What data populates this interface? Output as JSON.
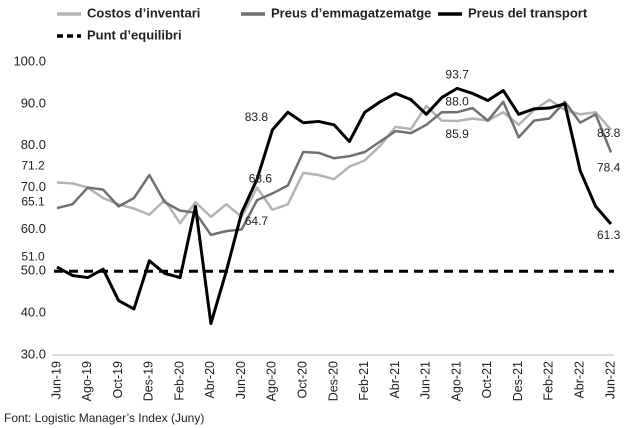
{
  "chart_data": {
    "type": "line",
    "categories": [
      "Jun-19",
      null,
      "Ago-19",
      null,
      "Oct-19",
      null,
      "Des-19",
      null,
      "Feb-20",
      null,
      "Abr-20",
      null,
      "Jun-20",
      null,
      "Ago-20",
      null,
      "Oct-20",
      null,
      "Des-20",
      null,
      "Feb-21",
      null,
      "Abr-21",
      null,
      "Jun-21",
      null,
      "Ago-21",
      null,
      "Oct-21",
      null,
      "Des-21",
      null,
      "Feb-22",
      null,
      "Abr-22",
      null,
      "Jun-22"
    ],
    "series": [
      {
        "name": "Costos d’inventari",
        "color": "#b3b3b3",
        "values": [
          71.2,
          71,
          70,
          67.5,
          66,
          65,
          63.5,
          67,
          61.5,
          66.5,
          63,
          66,
          63,
          70,
          64.7,
          66,
          73.5,
          73,
          72,
          75,
          76.5,
          80,
          84.5,
          84,
          89.5,
          86,
          85.9,
          86.5,
          86,
          88,
          85,
          88.5,
          91,
          88.5,
          87.5,
          88,
          83.8
        ],
        "value_labels": [
          "71.2",
          null,
          null,
          null,
          null,
          null,
          null,
          null,
          null,
          null,
          null,
          null,
          null,
          null,
          "64.7",
          null,
          null,
          null,
          null,
          null,
          null,
          null,
          null,
          null,
          null,
          null,
          "85.9",
          null,
          null,
          null,
          null,
          null,
          null,
          null,
          null,
          null,
          "83.8"
        ]
      },
      {
        "name": "Preus d’emmagatzematge",
        "color": "#707070",
        "values": [
          65.1,
          66,
          70,
          69.5,
          65.5,
          67.5,
          73,
          66.5,
          64.5,
          64,
          58.7,
          59.6,
          60,
          67,
          68.6,
          70.5,
          78.5,
          78.3,
          77,
          77.5,
          78.5,
          81,
          83.5,
          83,
          85,
          88,
          88.0,
          89,
          86,
          90.5,
          82,
          86,
          86.5,
          90.5,
          85.5,
          87.5,
          78.4
        ],
        "value_labels": [
          "65.1",
          null,
          null,
          null,
          null,
          null,
          null,
          null,
          null,
          null,
          null,
          null,
          null,
          null,
          "68.6",
          null,
          null,
          null,
          null,
          null,
          null,
          null,
          null,
          null,
          null,
          null,
          "88.0",
          null,
          null,
          null,
          null,
          null,
          null,
          null,
          null,
          null,
          "78.4"
        ]
      },
      {
        "name": "Preus del transport",
        "color": "#000000",
        "values": [
          51.0,
          49,
          48.5,
          50.5,
          43,
          41,
          52.5,
          49.5,
          48.5,
          65.5,
          37.5,
          50,
          64,
          72,
          83.8,
          88,
          85.5,
          85.8,
          85,
          81,
          88,
          90.5,
          92.5,
          91,
          87.5,
          91.5,
          93.7,
          92.5,
          90.8,
          93.2,
          87.5,
          88.8,
          89,
          90,
          74,
          65.5,
          61.3
        ],
        "value_labels": [
          "51.0",
          null,
          null,
          null,
          null,
          null,
          null,
          null,
          null,
          null,
          null,
          null,
          null,
          null,
          "83.8",
          null,
          null,
          null,
          null,
          null,
          null,
          null,
          null,
          null,
          null,
          null,
          "93.7",
          null,
          null,
          null,
          null,
          null,
          null,
          null,
          null,
          null,
          "61.3"
        ]
      }
    ],
    "hline": {
      "name": "Punt d’equilibri",
      "value": 50,
      "color": "#000000",
      "dashed": true
    },
    "ylim": [
      30,
      100
    ],
    "yticks": [
      {
        "value": 30,
        "label": "30.0"
      },
      {
        "value": 40,
        "label": "40.0"
      },
      {
        "value": 50,
        "label": "50.0"
      },
      {
        "value": 60,
        "label": "60.0"
      },
      {
        "value": 70,
        "label": "70.0"
      },
      {
        "value": 80,
        "label": "80.0"
      },
      {
        "value": 90,
        "label": "90.0"
      },
      {
        "value": 100,
        "label": "100.0"
      }
    ],
    "grid": false,
    "source": "Font: Logistic Manager’s Index (Juny)"
  }
}
